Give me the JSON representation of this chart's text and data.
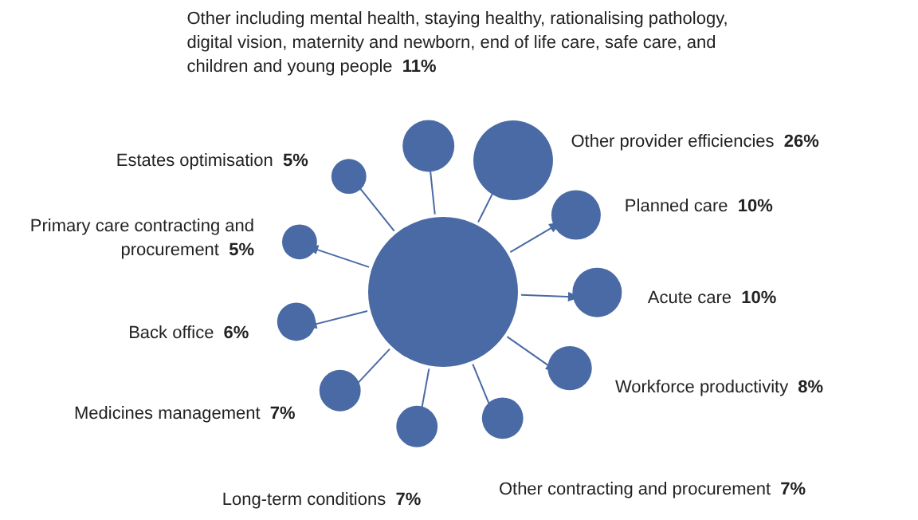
{
  "chart_data": {
    "type": "other",
    "color": "#4a6aa5",
    "categories": [
      "Other including mental health, staying healthy, rationalising pathology, digital vision, maternity and newborn, end of life care, safe care, and children and young people",
      "Other provider efficiencies",
      "Planned care",
      "Acute care",
      "Workforce productivity",
      "Other contracting and procurement",
      "Long-term conditions",
      "Medicines management",
      "Back office",
      "Primary care contracting and procurement",
      "Estates optimisation"
    ],
    "values": [
      11,
      26,
      10,
      10,
      8,
      7,
      7,
      7,
      6,
      5,
      5
    ],
    "value_labels": [
      "11%",
      "26%",
      "10%",
      "10%",
      "8%",
      "7%",
      "7%",
      "7%",
      "6%",
      "5%",
      "5%"
    ]
  }
}
